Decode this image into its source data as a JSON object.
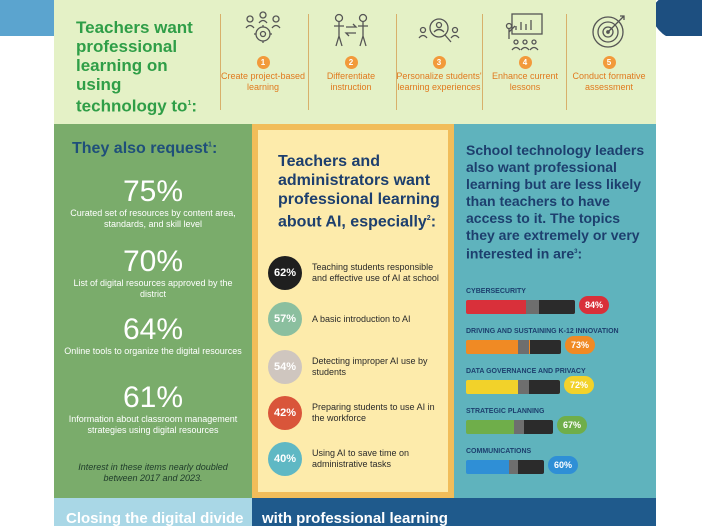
{
  "header": {
    "title_main": "Teachers want professional learning on using technology to",
    "title_sup": "1",
    "title_end": ":",
    "items": [
      {
        "num": "1",
        "label": "Create project-based learning",
        "icon": "gears-team-icon"
      },
      {
        "num": "2",
        "label": "Differentiate instruction",
        "icon": "differentiate-people-icon"
      },
      {
        "num": "3",
        "label": "Personalize students' learning experiences",
        "icon": "magnify-person-icon"
      },
      {
        "num": "4",
        "label": "Enhance current lessons",
        "icon": "presentation-board-icon"
      },
      {
        "num": "5",
        "label": "Conduct formative assessment",
        "icon": "target-icon"
      }
    ]
  },
  "left": {
    "title_main": "They also request",
    "title_sup": "1",
    "title_end": ":",
    "stats": [
      {
        "pct": "75%",
        "desc": "Curated set of resources by content area, standards, and skill level"
      },
      {
        "pct": "70%",
        "desc": "List of digital resources approved by the district"
      },
      {
        "pct": "64%",
        "desc": "Online tools to organize the digital resources"
      },
      {
        "pct": "61%",
        "desc": "Information about classroom management strategies using digital resources"
      }
    ],
    "note": "Interest in these items nearly doubled between 2017 and 2023."
  },
  "middle": {
    "title_main": "Teachers and administrators want professional learning about AI, especially",
    "title_sup": "2",
    "title_end": ":",
    "items": [
      {
        "pct": "62%",
        "text": "Teaching students responsible and effective use of AI at school",
        "color": "#1f1f1f"
      },
      {
        "pct": "57%",
        "text": "A basic introduction to AI",
        "color": "#8bbf9f"
      },
      {
        "pct": "54%",
        "text": "Detecting improper AI use by students",
        "color": "#cfc6bf"
      },
      {
        "pct": "42%",
        "text": "Preparing students to use AI in the workforce",
        "color": "#d9553a"
      },
      {
        "pct": "40%",
        "text": "Using AI to save time on administrative tasks",
        "color": "#5fb8c4"
      }
    ]
  },
  "right": {
    "title_main": "School technology leaders also want professional learning but are less likely than teachers to have access to it. The topics they are extremely or very interested in are",
    "title_sup": "3",
    "title_end": ":",
    "topics": [
      {
        "name": "CYBERSECURITY",
        "pct": "84%",
        "value": 84,
        "color": "#d9303a"
      },
      {
        "name": "DRIVING AND SUSTAINING K-12 INNOVATION",
        "pct": "73%",
        "value": 73,
        "color": "#f08a24"
      },
      {
        "name": "DATA GOVERNANCE AND PRIVACY",
        "pct": "72%",
        "value": 72,
        "color": "#f2d22a"
      },
      {
        "name": "STRATEGIC PLANNING",
        "pct": "67%",
        "value": 67,
        "color": "#6fae4a"
      },
      {
        "name": "COMMUNICATIONS",
        "pct": "60%",
        "value": 60,
        "color": "#2f8fd6"
      }
    ]
  },
  "bottom": {
    "left_text": "Closing the digital divide",
    "right_text": "with professional learning"
  }
}
